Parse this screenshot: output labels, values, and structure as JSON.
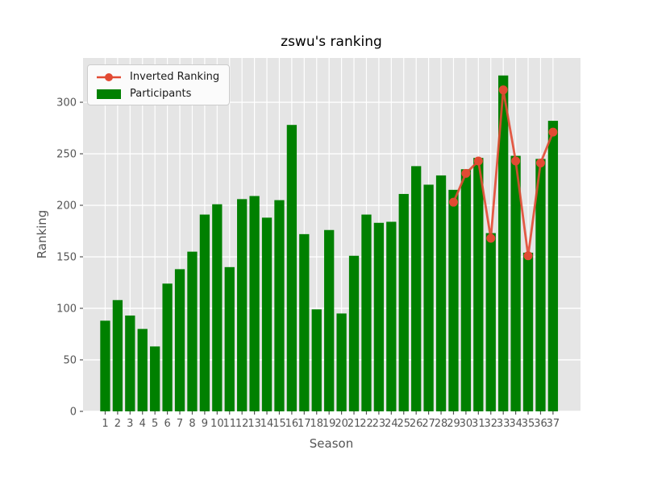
{
  "title": "zswu's ranking",
  "legend": {
    "items": [
      {
        "label": "Inverted Ranking",
        "type": "line"
      },
      {
        "label": "Participants",
        "type": "bar"
      }
    ]
  },
  "chart_data": {
    "type": "bar",
    "title": "zswu's ranking",
    "xlabel": "Season",
    "ylabel": "Ranking",
    "categories": [
      1,
      2,
      3,
      4,
      5,
      6,
      7,
      8,
      9,
      10,
      11,
      12,
      13,
      14,
      15,
      16,
      17,
      18,
      19,
      20,
      21,
      22,
      23,
      24,
      25,
      26,
      27,
      28,
      29,
      30,
      31,
      32,
      33,
      34,
      35,
      36,
      37
    ],
    "series": [
      {
        "name": "Participants",
        "type": "bar",
        "color": "#008000",
        "values": [
          88,
          108,
          93,
          80,
          63,
          124,
          138,
          155,
          191,
          201,
          140,
          206,
          209,
          188,
          205,
          278,
          172,
          99,
          176,
          95,
          151,
          191,
          183,
          184,
          211,
          238,
          220,
          229,
          215,
          235,
          246,
          173,
          326,
          248,
          154,
          245,
          282
        ]
      },
      {
        "name": "Inverted Ranking",
        "type": "line",
        "color": "#E24A33",
        "x": [
          29,
          30,
          31,
          32,
          33,
          34,
          35,
          36,
          37
        ],
        "values": [
          203,
          231,
          243,
          168,
          312,
          243,
          151,
          241,
          271
        ]
      }
    ],
    "yticks": [
      0,
      50,
      100,
      150,
      200,
      250,
      300
    ],
    "ylim": [
      0,
      343
    ],
    "xlim": [
      -0.78,
      39.21
    ],
    "grid": true,
    "legend_position": "upper left",
    "style": {
      "plot_bg": "#E5E5E5",
      "grid_color": "#FFFFFF",
      "tick_text_color": "#555555",
      "axis_label_color": "#555555",
      "title_color": "#000000"
    }
  }
}
